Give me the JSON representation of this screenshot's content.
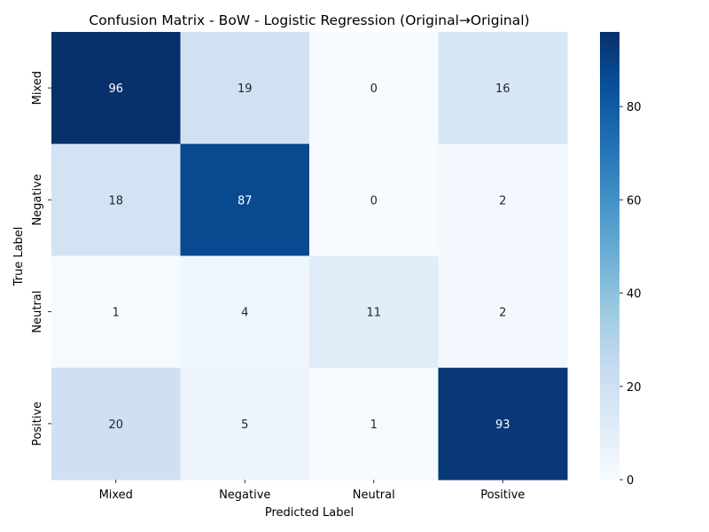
{
  "chart_data": {
    "type": "heatmap",
    "title": "Confusion Matrix - BoW - Logistic Regression (Original→Original)",
    "xlabel": "Predicted Label",
    "ylabel": "True Label",
    "x_categories": [
      "Mixed",
      "Negative",
      "Neutral",
      "Positive"
    ],
    "y_categories": [
      "Mixed",
      "Negative",
      "Neutral",
      "Positive"
    ],
    "values": [
      [
        96,
        19,
        0,
        16
      ],
      [
        18,
        87,
        0,
        2
      ],
      [
        1,
        4,
        11,
        2
      ],
      [
        20,
        5,
        1,
        93
      ]
    ],
    "colormap": "Blues",
    "color_range": [
      0,
      96
    ],
    "colorbar_ticks": [
      0,
      20,
      40,
      60,
      80
    ],
    "colors": {
      "low": "#f7fbff",
      "high": "#08306b"
    }
  }
}
